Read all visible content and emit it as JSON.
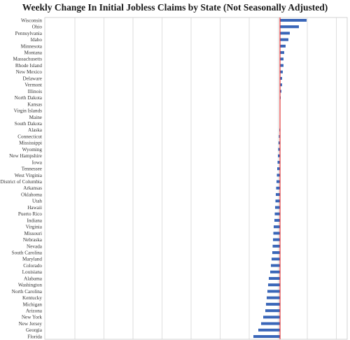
{
  "chart_data": {
    "type": "bar",
    "orientation": "horizontal",
    "title": "Weekly Change In Initial Jobless Claims by State (Not Seasonally Adjusted)",
    "xlabel": "",
    "ylabel": "",
    "grid": true,
    "categories": [
      "Wisconsin",
      "Ohio",
      "Pennsylvania",
      "Idaho",
      "Minnesota",
      "Montana",
      "Massachusetts",
      "Rhode Island",
      "New Mexico",
      "Delaware",
      "Vermont",
      "Illinois",
      "North Dakota",
      "Kansas",
      "Virgin Islands",
      "Maine",
      "South Dakota",
      "Alaska",
      "Connecticut",
      "Mississippi",
      "Wyoming",
      "New Hampshire",
      "Iowa",
      "Tennessee",
      "West Virginia",
      "District of Columbia",
      "Arkansas",
      "Oklahoma",
      "Utah",
      "Hawaii",
      "Puerto Rico",
      "Indiana",
      "Virginia",
      "Missouri",
      "Nebraska",
      "Nevada",
      "South Carolina",
      "Maryland",
      "Colorado",
      "Louisiana",
      "Alabama",
      "Washington",
      "North Carolina",
      "Kentucky",
      "Michigan",
      "Arizona",
      "New York",
      "New Jersey",
      "Georgia",
      "Florida"
    ],
    "values": [
      38,
      27,
      14,
      12,
      8,
      6,
      5,
      5,
      4,
      3,
      3,
      2,
      1,
      0.5,
      0.3,
      0,
      -0.5,
      -1,
      -1.5,
      -2,
      -2.5,
      -3,
      -3.5,
      -4,
      -4.5,
      -5,
      -5.5,
      -6,
      -6.5,
      -7,
      -7.5,
      -8,
      -9,
      -9.5,
      -10,
      -10.5,
      -11,
      -12,
      -13,
      -14,
      -16,
      -17,
      -18,
      -19,
      -20,
      -21,
      -24,
      -27,
      -31,
      -38
    ],
    "colors": {
      "bar": "#3a66b8",
      "zero_line": "#e03030",
      "grid": "#d0d0d0"
    }
  }
}
